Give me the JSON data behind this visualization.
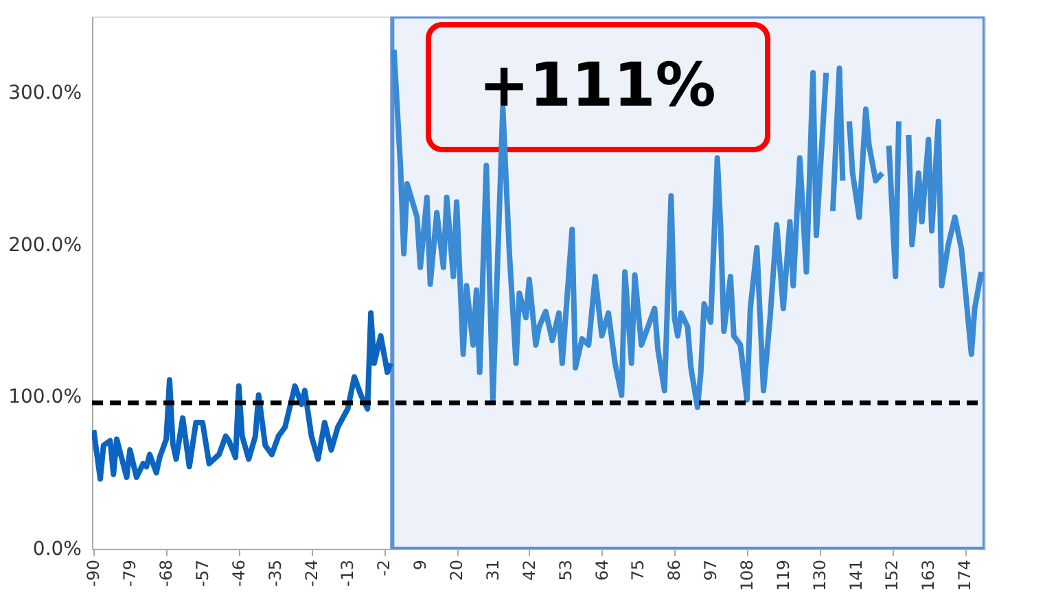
{
  "chart_data": {
    "type": "line",
    "xlim": [
      -90.5,
      180
    ],
    "xticks": [
      -90,
      -79,
      -68,
      -57,
      -46,
      -35,
      -24,
      -13,
      -2,
      9,
      20,
      31,
      42,
      53,
      64,
      75,
      86,
      97,
      108,
      119,
      130,
      141,
      152,
      163,
      174
    ],
    "ylim": [
      0,
      350
    ],
    "yticks": [
      {
        "value": 0,
        "label": "0.0%"
      },
      {
        "value": 100,
        "label": "100.0%"
      },
      {
        "value": 200,
        "label": "200.0%"
      },
      {
        "value": 300,
        "label": "300.0%"
      }
    ],
    "grid": false,
    "line_style": "solid",
    "marker": "none",
    "series": [
      {
        "color": "#0a64c0",
        "x": [
          -90,
          -88,
          -87,
          -85,
          -84,
          -83,
          -80,
          -79,
          -77,
          -75,
          -74,
          -73,
          -71,
          -70,
          -68,
          -67,
          -66,
          -65,
          -63,
          -61,
          -59,
          -57,
          -55,
          -52,
          -50,
          -49,
          -47,
          -46,
          -45,
          -43,
          -41,
          -40,
          -38,
          -36,
          -34,
          -32,
          -29,
          -27,
          -26,
          -24,
          -22,
          -20,
          -18,
          -16,
          -13,
          -11,
          -9,
          -7,
          -6,
          -5,
          -3,
          -1,
          0
        ],
        "values": [
          78,
          46,
          68,
          71,
          49,
          72,
          47,
          65,
          47,
          56,
          54,
          62,
          50,
          60,
          72,
          111,
          69,
          59,
          86,
          54,
          83,
          83,
          56,
          62,
          74,
          71,
          60,
          107,
          74,
          59,
          74,
          101,
          68,
          62,
          74,
          80,
          107,
          95,
          104,
          74,
          59,
          83,
          65,
          80,
          92,
          113,
          101,
          92,
          155,
          122,
          140,
          116,
          122
        ]
      },
      {
        "color": "#3a8ad4",
        "x": [
          1,
          3,
          4,
          5,
          8,
          9,
          11,
          12,
          14,
          16,
          17,
          19,
          20,
          22,
          23,
          25,
          26,
          27,
          29,
          31,
          34,
          36,
          38,
          39,
          41,
          42,
          44,
          45,
          47,
          49,
          51,
          52,
          55,
          56,
          58,
          60,
          62,
          64,
          66,
          68,
          70,
          71,
          73,
          74,
          76,
          78,
          80,
          81,
          83,
          85,
          86,
          87,
          88,
          90,
          91,
          93,
          94,
          95,
          97,
          99,
          100,
          101,
          103,
          104,
          106,
          108,
          109,
          111,
          113,
          115,
          117,
          119,
          121,
          122,
          124,
          126,
          128,
          129,
          132,
          133,
          134,
          136,
          137,
          138,
          139,
          140,
          142,
          144,
          145,
          147,
          149,
          150,
          151,
          153,
          154,
          155,
          157,
          158,
          160,
          161,
          163,
          164,
          166,
          167,
          169,
          171,
          173,
          176,
          177,
          179
        ],
        "values": [
          328,
          251,
          194,
          240,
          218,
          185,
          231,
          174,
          221,
          185,
          231,
          179,
          228,
          128,
          173,
          134,
          170,
          116,
          252,
          98,
          290,
          194,
          122,
          168,
          152,
          177,
          134,
          146,
          156,
          137,
          155,
          122,
          210,
          119,
          138,
          134,
          179,
          140,
          155,
          122,
          101,
          182,
          122,
          180,
          134,
          146,
          158,
          131,
          104,
          232,
          152,
          140,
          155,
          146,
          119,
          93,
          116,
          161,
          149,
          257,
          212,
          143,
          179,
          140,
          134,
          98,
          158,
          198,
          104,
          152,
          213,
          158,
          215,
          173,
          257,
          182,
          313,
          206,
          313,
          null,
          222,
          316,
          242,
          null,
          281,
          247,
          218,
          289,
          265,
          242,
          247,
          null,
          265,
          179,
          281,
          null,
          272,
          200,
          247,
          215,
          269,
          209,
          281,
          173,
          200,
          218,
          197,
          128,
          158,
          182
        ]
      }
    ],
    "ref_lines": [
      {
        "axis": "y",
        "value": 96,
        "color": "#000000",
        "line_style": "dashed"
      }
    ],
    "bands": [
      {
        "axis": "x",
        "from": 0.5,
        "to": 180,
        "color": "#edf2fa"
      }
    ],
    "annotations": [
      "+111%"
    ]
  }
}
